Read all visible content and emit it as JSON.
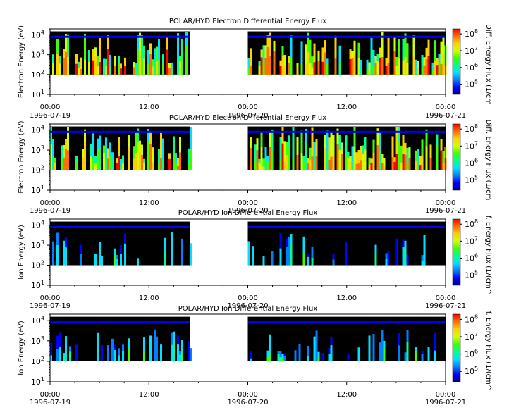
{
  "colors": {
    "background": "#ffffff",
    "no_data_fill": "#000000",
    "axis": "#000000",
    "colormap": [
      "#00008c",
      "#0000ff",
      "#0080ff",
      "#00e0ff",
      "#00ff90",
      "#40ff00",
      "#d0ff00",
      "#ffd000",
      "#ff7000",
      "#ff0000"
    ]
  },
  "x_ticks": [
    {
      "time": "00:00",
      "date": "1996-07-19"
    },
    {
      "time": "12:00",
      "date": ""
    },
    {
      "time": "00:00",
      "date": "1996-07-20"
    },
    {
      "time": "12:00",
      "date": ""
    },
    {
      "time": "00:00",
      "date": "1996-07-21"
    }
  ],
  "chart_data": [
    {
      "type": "heatmap",
      "title": "POLAR/HYD  Electron Differential Energy Flux",
      "ylabel": "Electron Energy (eV)",
      "yscale": "log",
      "ylim": [
        10,
        20000
      ],
      "yticks": [
        {
          "base": "10",
          "exp": "1"
        },
        {
          "base": "10",
          "exp": "2"
        },
        {
          "base": "10",
          "exp": "3"
        },
        {
          "base": "10",
          "exp": "4"
        }
      ],
      "xlim": [
        "1996-07-19 00:00",
        "1996-07-21 00:00"
      ],
      "data_gaps": [
        [
          "1996-07-19 17:00",
          "1996-07-20 00:00"
        ]
      ],
      "energy_range": [
        100,
        15000
      ],
      "colorbar": {
        "label": "Diff. Energy Flux (1/cm",
        "scale": "log",
        "ticks": [
          {
            "base": "10",
            "exp": "5"
          },
          {
            "base": "10",
            "exp": "6"
          },
          {
            "base": "10",
            "exp": "7"
          },
          {
            "base": "10",
            "exp": "8"
          }
        ]
      }
    },
    {
      "type": "heatmap",
      "title": "POLAR/HYD  Electron Differential Energy Flux",
      "ylabel": "Electron Energy (eV)",
      "yscale": "log",
      "ylim": [
        10,
        20000
      ],
      "yticks": [
        {
          "base": "10",
          "exp": "1"
        },
        {
          "base": "10",
          "exp": "2"
        },
        {
          "base": "10",
          "exp": "3"
        },
        {
          "base": "10",
          "exp": "4"
        }
      ],
      "xlim": [
        "1996-07-19 00:00",
        "1996-07-21 00:00"
      ],
      "data_gaps": [
        [
          "1996-07-19 17:00",
          "1996-07-20 00:00"
        ]
      ],
      "energy_range": [
        100,
        15000
      ],
      "colorbar": {
        "label": "Diff. Energy Flux (1/cm",
        "scale": "log",
        "ticks": [
          {
            "base": "10",
            "exp": "5"
          },
          {
            "base": "10",
            "exp": "6"
          },
          {
            "base": "10",
            "exp": "7"
          },
          {
            "base": "10",
            "exp": "8"
          }
        ]
      }
    },
    {
      "type": "heatmap",
      "title": "POLAR/HYD  Ion Differential Energy Flux",
      "ylabel": "Ion Energy (eV)",
      "yscale": "log",
      "ylim": [
        10,
        20000
      ],
      "yticks": [
        {
          "base": "10",
          "exp": "1"
        },
        {
          "base": "10",
          "exp": "2"
        },
        {
          "base": "10",
          "exp": "3"
        },
        {
          "base": "10",
          "exp": "4"
        }
      ],
      "xlim": [
        "1996-07-19 00:00",
        "1996-07-21 00:00"
      ],
      "data_gaps": [
        [
          "1996-07-19 17:00",
          "1996-07-20 00:00"
        ]
      ],
      "energy_range": [
        100,
        15000
      ],
      "colorbar": {
        "label": "f. Energy Flux (1/(cm^",
        "scale": "log",
        "ticks": [
          {
            "base": "10",
            "exp": "5"
          },
          {
            "base": "10",
            "exp": "6"
          },
          {
            "base": "10",
            "exp": "7"
          },
          {
            "base": "10",
            "exp": "8"
          }
        ]
      }
    },
    {
      "type": "heatmap",
      "title": "POLAR/HYD  Ion Differential Energy Flux",
      "ylabel": "Ion Energy (eV)",
      "yscale": "log",
      "ylim": [
        10,
        20000
      ],
      "yticks": [
        {
          "base": "10",
          "exp": "1"
        },
        {
          "base": "10",
          "exp": "2"
        },
        {
          "base": "10",
          "exp": "3"
        },
        {
          "base": "10",
          "exp": "4"
        }
      ],
      "xlim": [
        "1996-07-19 00:00",
        "1996-07-21 00:00"
      ],
      "data_gaps": [
        [
          "1996-07-19 17:00",
          "1996-07-20 00:00"
        ]
      ],
      "energy_range": [
        100,
        15000
      ],
      "colorbar": {
        "label": "f. Energy Flux (1/(cm^",
        "scale": "log",
        "ticks": [
          {
            "base": "10",
            "exp": "5"
          },
          {
            "base": "10",
            "exp": "6"
          },
          {
            "base": "10",
            "exp": "7"
          },
          {
            "base": "10",
            "exp": "8"
          }
        ]
      }
    }
  ]
}
